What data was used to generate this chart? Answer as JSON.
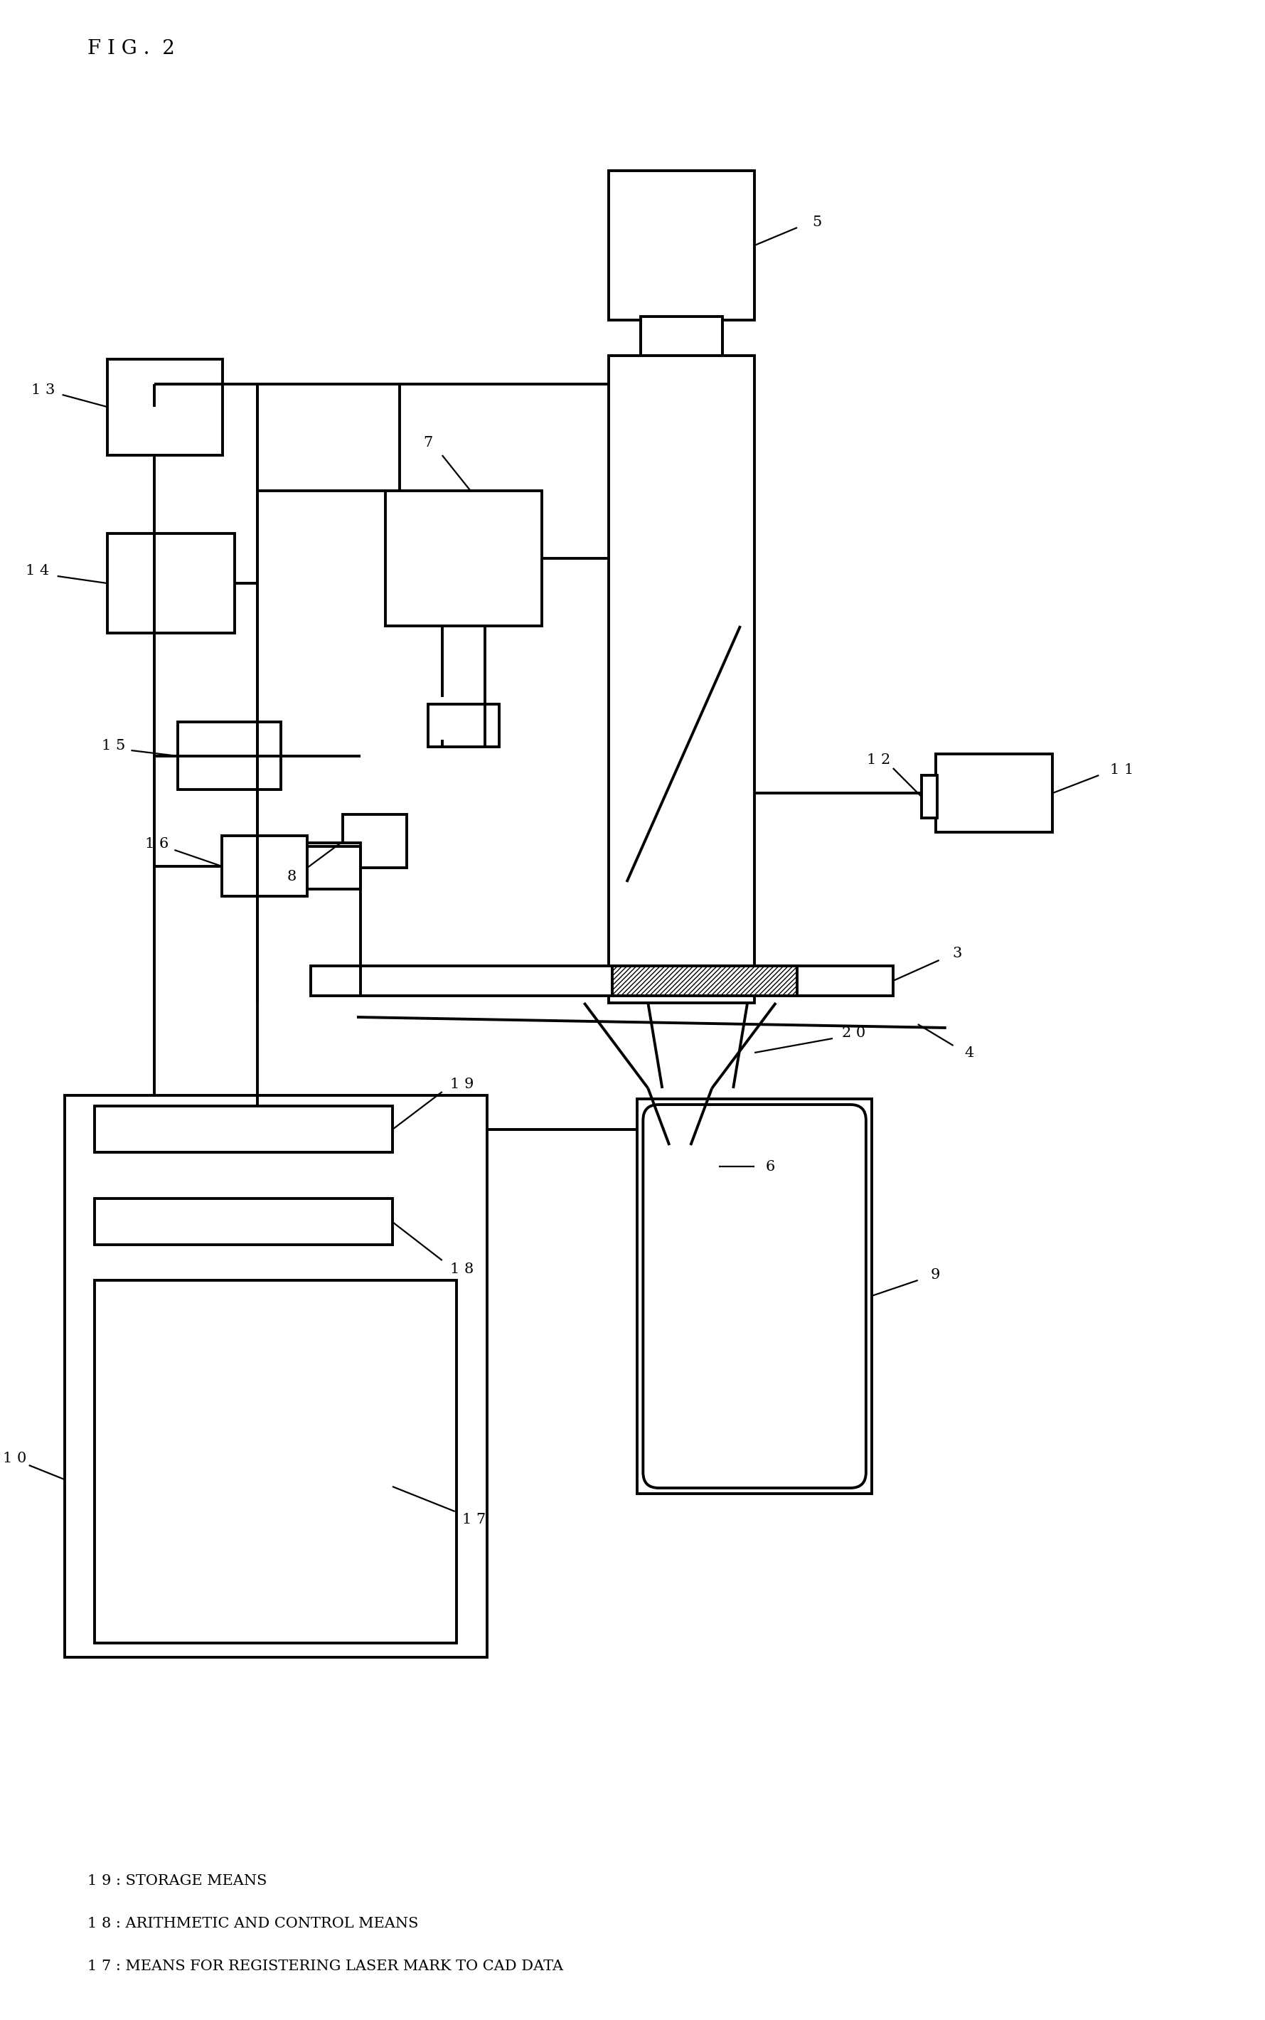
{
  "title": "F I G .  2",
  "bg_color": "#ffffff",
  "lc": "#000000",
  "lw": 2.8,
  "thin_lw": 1.6,
  "legend_lines": [
    "1 9 : STORAGE MEANS",
    "1 8 : ARITHMETIC AND CONTROL MEANS",
    "1 7 : MEANS FOR REGISTERING LASER MARK TO CAD DATA"
  ],
  "label_fontsize": 15,
  "title_fontsize": 20
}
